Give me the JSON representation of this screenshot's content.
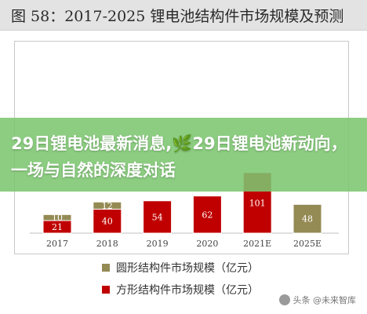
{
  "title": "图 58：2017-2025 锂电池结构件市场规模及预测",
  "banner": "29日锂电池最新消息,🌿29日锂电池新动向，一场与自然的深度对话",
  "watermark": "头条 @未来智库",
  "chart_data": {
    "type": "bar",
    "stacked": true,
    "categories": [
      "2017",
      "2018",
      "2019",
      "2020",
      "2021E",
      "2025E"
    ],
    "series": [
      {
        "name": "方形结构件市场规模（亿元）",
        "color": "#c00000",
        "values": [
          21,
          40,
          54,
          62,
          101,
          null
        ]
      },
      {
        "name": "圆形结构件市场规模（亿元）",
        "color": "#948a54",
        "values": [
          10,
          12,
          null,
          null,
          null,
          48
        ]
      }
    ],
    "ylim": [
      0,
      300
    ],
    "grid": false,
    "legend": "bottom"
  }
}
